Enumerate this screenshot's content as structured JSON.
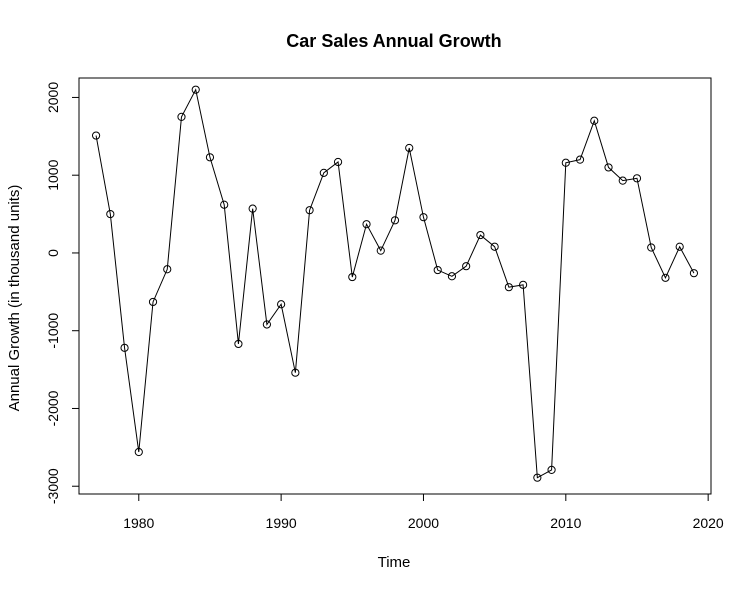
{
  "chart_data": {
    "type": "line",
    "title": "Car Sales Annual Growth",
    "xlabel": "Time",
    "ylabel": "Annual Growth (in thousand units)",
    "xlim": [
      1975.8,
      2020.2
    ],
    "ylim": [
      -3100,
      2250
    ],
    "x_ticks": [
      1980,
      1990,
      2000,
      2010,
      2020
    ],
    "y_ticks": [
      -3000,
      -2000,
      -1000,
      0,
      1000,
      2000
    ],
    "x_tick_labels": [
      "1980",
      "1990",
      "2000",
      "2010",
      "2020"
    ],
    "y_tick_labels": [
      "-3000",
      "-2000",
      "-1000",
      "0",
      "1000",
      "2000"
    ],
    "grid": false,
    "legend": "none",
    "markers": "open-circle",
    "series": [
      {
        "x": [
          1977,
          1978,
          1979,
          1980,
          1981,
          1982,
          1983,
          1984,
          1985,
          1986,
          1987,
          1988,
          1989,
          1990,
          1991,
          1992,
          1993,
          1994,
          1995,
          1996,
          1997,
          1998,
          1999,
          2000,
          2001,
          2002,
          2003,
          2004,
          2005,
          2006,
          2007,
          2008,
          2009,
          2010,
          2011,
          2012,
          2013,
          2014,
          2015,
          2016,
          2017,
          2018,
          2019
        ],
        "values": [
          1510,
          500,
          -1220,
          -2560,
          -630,
          -210,
          1750,
          2100,
          1230,
          620,
          -1170,
          570,
          -920,
          -660,
          -1540,
          550,
          1030,
          1170,
          -310,
          370,
          30,
          420,
          1350,
          460,
          -220,
          -300,
          -170,
          230,
          80,
          -440,
          -410,
          -2890,
          -2790,
          1160,
          1200,
          1700,
          1100,
          930,
          960,
          70,
          -320,
          80,
          -260
        ]
      }
    ]
  }
}
